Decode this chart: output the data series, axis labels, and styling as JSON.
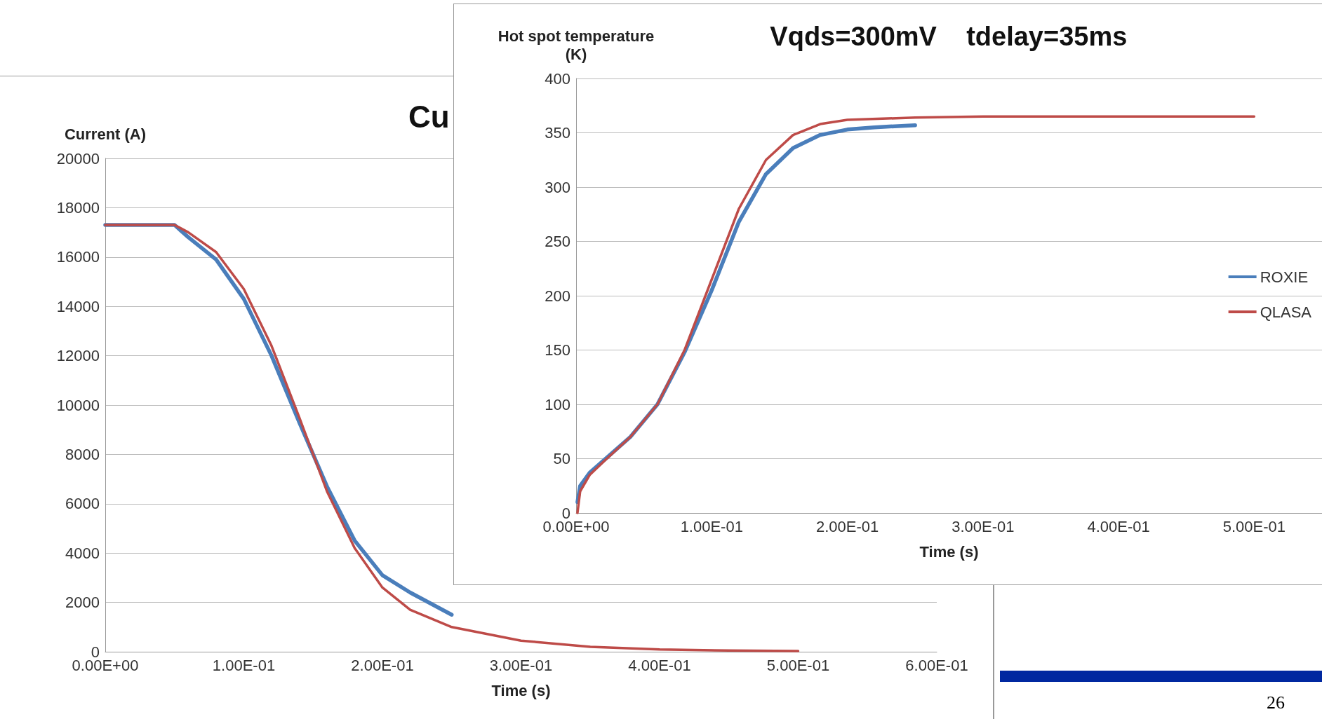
{
  "chart_data": [
    {
      "type": "line",
      "title": "Cu",
      "xlabel": "Time (s)",
      "ylabel": "Current (A)",
      "xlim": [
        0,
        0.6
      ],
      "ylim": [
        0,
        20000
      ],
      "xticks": [
        {
          "value": 0,
          "label": "0.00E+00"
        },
        {
          "value": 0.1,
          "label": "1.00E-01"
        },
        {
          "value": 0.2,
          "label": "2.00E-01"
        },
        {
          "value": 0.3,
          "label": "3.00E-01"
        },
        {
          "value": 0.4,
          "label": "4.00E-01"
        },
        {
          "value": 0.5,
          "label": "5.00E-01"
        },
        {
          "value": 0.6,
          "label": "6.00E-01"
        }
      ],
      "yticks": [
        0,
        2000,
        4000,
        6000,
        8000,
        10000,
        12000,
        14000,
        16000,
        18000,
        20000
      ],
      "grid": "y",
      "legend": false,
      "marker": "none",
      "line_style": "solid",
      "annotations": [
        "26"
      ],
      "series": [
        {
          "color": "#4a7ebb",
          "x": [
            0,
            0.05,
            0.06,
            0.08,
            0.1,
            0.12,
            0.14,
            0.15,
            0.16,
            0.18,
            0.2,
            0.22,
            0.25
          ],
          "values": [
            17300,
            17300,
            16800,
            15900,
            14300,
            12000,
            9300,
            8000,
            6700,
            4500,
            3100,
            2400,
            1500
          ]
        },
        {
          "color": "#be4b48",
          "x": [
            0,
            0.05,
            0.06,
            0.08,
            0.1,
            0.12,
            0.14,
            0.15,
            0.16,
            0.18,
            0.2,
            0.22,
            0.25,
            0.3,
            0.35,
            0.4,
            0.45,
            0.5
          ],
          "values": [
            17300,
            17300,
            17000,
            16200,
            14700,
            12400,
            9500,
            8000,
            6500,
            4200,
            2600,
            1700,
            1000,
            450,
            200,
            90,
            50,
            30
          ]
        }
      ]
    },
    {
      "type": "line",
      "title": "Vqds=300mV    tdelay=35ms",
      "xlabel": "Time (s)",
      "ylabel": "Hot spot temperature\n(K)",
      "xlim": [
        0,
        0.55
      ],
      "ylim": [
        0,
        400
      ],
      "xticks": [
        {
          "value": 0,
          "label": "0.00E+00"
        },
        {
          "value": 0.1,
          "label": "1.00E-01"
        },
        {
          "value": 0.2,
          "label": "2.00E-01"
        },
        {
          "value": 0.3,
          "label": "3.00E-01"
        },
        {
          "value": 0.4,
          "label": "4.00E-01"
        },
        {
          "value": 0.5,
          "label": "5.00E-01"
        }
      ],
      "yticks": [
        0,
        50,
        100,
        150,
        200,
        250,
        300,
        350,
        400
      ],
      "grid": "y",
      "legend": "right",
      "marker": "none",
      "line_style": "solid",
      "series": [
        {
          "name": "ROXIE",
          "color": "#4a7ebb",
          "x": [
            0.001,
            0.003,
            0.01,
            0.02,
            0.04,
            0.06,
            0.08,
            0.1,
            0.12,
            0.14,
            0.16,
            0.18,
            0.2,
            0.22,
            0.25
          ],
          "values": [
            10,
            25,
            37,
            48,
            70,
            100,
            148,
            205,
            268,
            312,
            336,
            348,
            353,
            355,
            357
          ]
        },
        {
          "name": "QLASA",
          "color": "#be4b48",
          "x": [
            0.001,
            0.003,
            0.01,
            0.02,
            0.04,
            0.06,
            0.08,
            0.1,
            0.12,
            0.14,
            0.16,
            0.18,
            0.2,
            0.25,
            0.3,
            0.5
          ],
          "values": [
            0,
            20,
            35,
            47,
            70,
            100,
            150,
            215,
            280,
            325,
            348,
            358,
            362,
            364,
            365,
            365
          ]
        }
      ]
    }
  ]
}
